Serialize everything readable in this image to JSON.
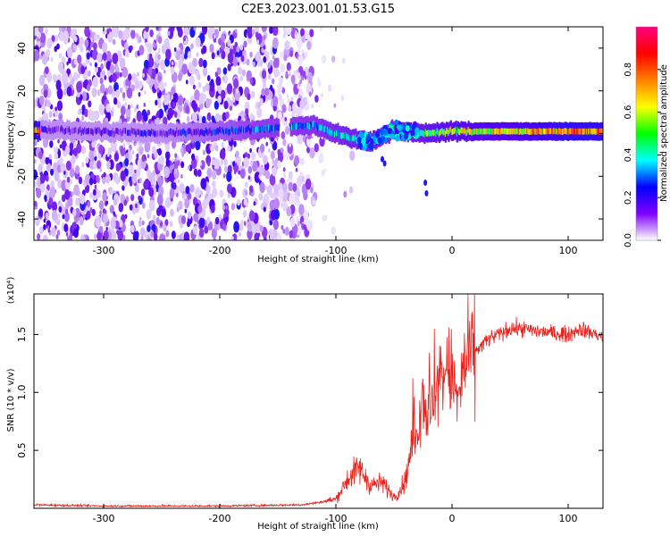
{
  "title": "C2E3.2023.001.01.53.G15",
  "chart_data": [
    {
      "type": "heatmap",
      "xlabel": "Height of straight line (km)",
      "ylabel": "Frequency (Hz)",
      "xlim": [
        -360,
        130
      ],
      "ylim": [
        -50,
        50
      ],
      "xticks": [
        -300,
        -200,
        -100,
        0,
        100
      ],
      "yticks": [
        -40,
        -20,
        0,
        20,
        40
      ],
      "grid": false,
      "colorbar": {
        "label": "Normalized spectral amplitude",
        "range": [
          0,
          1
        ],
        "ticks": [
          "0.0",
          "0.2",
          "0.4",
          "0.6",
          "0.8"
        ],
        "colormap": [
          "#ff0080",
          "#ff0000",
          "#ff8000",
          "#ffff00",
          "#00ff00",
          "#00ffff",
          "#0000ff",
          "#7f00ff",
          "#ffffff"
        ]
      },
      "regions": [
        {
          "x_range": [
            -360,
            -120
          ],
          "freq_range": [
            -50,
            50
          ],
          "amplitude": "scattered low values (~0.05-0.2)"
        },
        {
          "x_range": [
            -360,
            130
          ],
          "freq_range": [
            -4,
            4
          ],
          "amplitude": "carrier band; rises to ~0.6-0.95 for x > -30"
        },
        {
          "x_range": [
            -80,
            -30
          ],
          "freq_range": [
            -14,
            8
          ],
          "amplitude": "disturbed ~0.3-0.5"
        }
      ],
      "ridge_points": [
        {
          "x": -355,
          "freq": 2,
          "amp": 0.2
        },
        {
          "x": -300,
          "freq": 1,
          "amp": 0.2
        },
        {
          "x": -250,
          "freq": 0,
          "amp": 0.2
        },
        {
          "x": -165,
          "freq": 2,
          "amp": 0.35
        },
        {
          "x": -120,
          "freq": 4,
          "amp": 0.4
        },
        {
          "x": -90,
          "freq": -2,
          "amp": 0.5
        },
        {
          "x": -70,
          "freq": -4,
          "amp": 0.55
        },
        {
          "x": -50,
          "freq": 2,
          "amp": 0.45
        },
        {
          "x": -30,
          "freq": 0,
          "amp": 0.55
        },
        {
          "x": 0,
          "freq": 1,
          "amp": 0.65
        },
        {
          "x": 50,
          "freq": 1,
          "amp": 0.7
        },
        {
          "x": 100,
          "freq": 1,
          "amp": 0.8
        },
        {
          "x": 125,
          "freq": 1,
          "amp": 0.8
        }
      ]
    },
    {
      "type": "line",
      "xlabel": "Height of straight line (km)",
      "ylabel": "SNR (10 * v/v)",
      "y_multiplier": "(x10⁴)",
      "xlim": [
        -360,
        130
      ],
      "ylim": [
        0,
        1.85
      ],
      "xticks": [
        -300,
        -200,
        -100,
        0,
        100
      ],
      "yticks": [
        "0.5",
        "1.0",
        "1.5"
      ],
      "series": [
        {
          "color": "#e8221c",
          "x": [
            -360,
            -300,
            -200,
            -130,
            -115,
            -100,
            -90,
            -80,
            -70,
            -60,
            -50,
            -45,
            -40,
            -35,
            -30,
            -25,
            -20,
            -15,
            -10,
            -5,
            0,
            5,
            10,
            15,
            20,
            30,
            40,
            50,
            60,
            80,
            100,
            110,
            130
          ],
          "y": [
            0.03,
            0.02,
            0.02,
            0.03,
            0.05,
            0.08,
            0.25,
            0.35,
            0.2,
            0.22,
            0.1,
            0.15,
            0.25,
            0.5,
            0.7,
            1.0,
            0.75,
            1.0,
            1.1,
            1.2,
            1.15,
            0.9,
            1.2,
            1.3,
            1.35,
            1.45,
            1.5,
            1.55,
            1.55,
            1.52,
            1.5,
            1.55,
            1.48
          ]
        }
      ]
    }
  ]
}
